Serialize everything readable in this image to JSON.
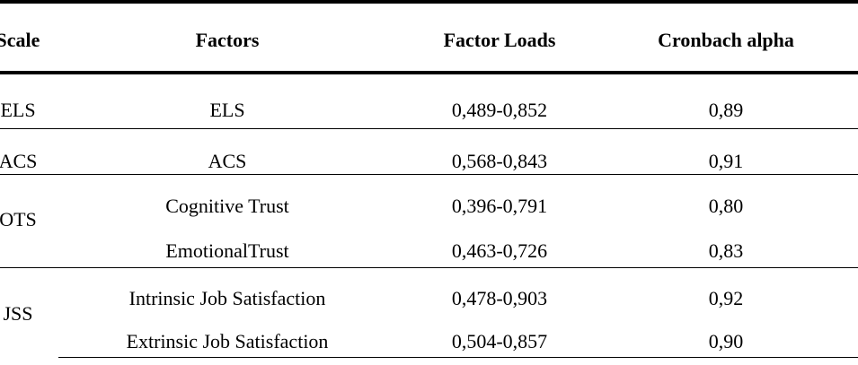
{
  "table": {
    "header": [
      "Scale",
      "Factors",
      "Factor Loads",
      "Cronbach alpha"
    ],
    "groups": [
      {
        "scale": "ELS",
        "rows": [
          [
            "ELS",
            "0,489-0,852",
            "0,89"
          ]
        ]
      },
      {
        "scale": "ACS",
        "rows": [
          [
            "ACS",
            "0,568-0,843",
            "0,91"
          ]
        ]
      },
      {
        "scale": "OTS",
        "rows": [
          [
            "Cognitive Trust",
            "0,396-0,791",
            "0,80"
          ],
          [
            "EmotionalTrust",
            "0,463-0,726",
            "0,83"
          ]
        ]
      },
      {
        "scale": "JSS",
        "rows": [
          [
            "Intrinsic Job Satisfaction",
            "0,478-0,903",
            "0,92"
          ],
          [
            "Extrinsic Job Satisfaction",
            "0,504-0,857",
            "0,90"
          ]
        ]
      }
    ]
  }
}
